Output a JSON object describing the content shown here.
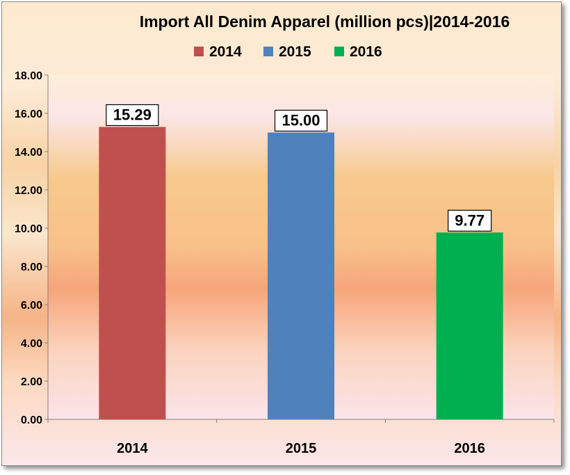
{
  "chart_data": {
    "type": "bar",
    "title": "Import All Denim Apparel (million pcs)|2014-2016",
    "categories": [
      "2014",
      "2015",
      "2016"
    ],
    "values": [
      15.29,
      15.0,
      9.77
    ],
    "value_labels": [
      "15.29",
      "15.00",
      "9.77"
    ],
    "colors": [
      "#c0504d",
      "#4f81bd",
      "#00b050"
    ],
    "legend": [
      "2014",
      "2015",
      "2016"
    ],
    "legend_position": "top",
    "ylim": [
      0,
      18
    ],
    "yticks": [
      "0.00",
      "2.00",
      "4.00",
      "6.00",
      "8.00",
      "10.00",
      "12.00",
      "14.00",
      "16.00",
      "18.00"
    ],
    "grid": false
  }
}
